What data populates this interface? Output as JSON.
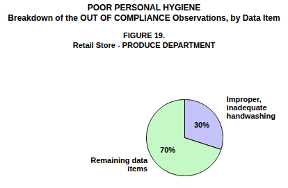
{
  "chart_data": {
    "type": "pie",
    "title": "POOR PERSONAL HYGIENE",
    "subtitle": "Breakdown of the OUT OF COMPLIANCE Observations, by Data Item",
    "annotations": [
      "FIGURE 19.",
      "Retail Store - PRODUCE DEPARTMENT"
    ],
    "categories": [
      "Improper,\ninadequate\nhandwashing",
      "Remaining data\nitems"
    ],
    "values": [
      30,
      70
    ],
    "value_labels": [
      "30%",
      "70%"
    ],
    "colors": [
      "#c4c4fa",
      "#c4f8c4"
    ],
    "data_labels": true
  }
}
